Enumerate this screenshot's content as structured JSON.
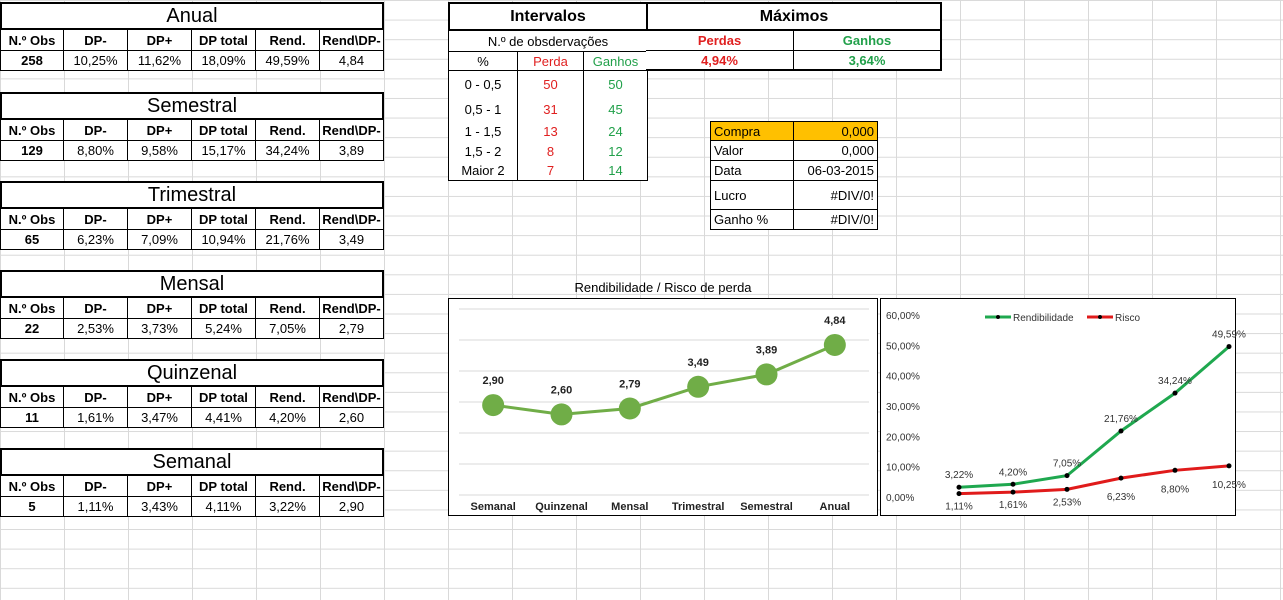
{
  "stats_tables": [
    {
      "title": "Anual",
      "headers": [
        "N.º Obs",
        "DP-",
        "DP+",
        "DP total",
        "Rend.",
        "Rend\\DP-"
      ],
      "values": [
        "258",
        "10,25%",
        "11,62%",
        "18,09%",
        "49,59%",
        "4,84"
      ]
    },
    {
      "title": "Semestral",
      "headers": [
        "N.º Obs",
        "DP-",
        "DP+",
        "DP total",
        "Rend.",
        "Rend\\DP-"
      ],
      "values": [
        "129",
        "8,80%",
        "9,58%",
        "15,17%",
        "34,24%",
        "3,89"
      ]
    },
    {
      "title": "Trimestral",
      "headers": [
        "N.º Obs",
        "DP-",
        "DP+",
        "DP total",
        "Rend.",
        "Rend\\DP-"
      ],
      "values": [
        "65",
        "6,23%",
        "7,09%",
        "10,94%",
        "21,76%",
        "3,49"
      ]
    },
    {
      "title": "Mensal",
      "headers": [
        "N.º Obs",
        "DP-",
        "DP+",
        "DP total",
        "Rend.",
        "Rend\\DP-"
      ],
      "values": [
        "22",
        "2,53%",
        "3,73%",
        "5,24%",
        "7,05%",
        "2,79"
      ]
    },
    {
      "title": "Quinzenal",
      "headers": [
        "N.º Obs",
        "DP-",
        "DP+",
        "DP total",
        "Rend.",
        "Rend\\DP-"
      ],
      "values": [
        "11",
        "1,61%",
        "3,47%",
        "4,41%",
        "4,20%",
        "2,60"
      ]
    },
    {
      "title": "Semanal",
      "headers": [
        "N.º Obs",
        "DP-",
        "DP+",
        "DP total",
        "Rend.",
        "Rend\\DP-"
      ],
      "values": [
        "5",
        "1,11%",
        "3,43%",
        "4,11%",
        "3,22%",
        "2,90"
      ]
    }
  ],
  "intervalos": {
    "title": "Intervalos",
    "subtitle": "N.º de obsdervações",
    "col_headers": [
      "%",
      "Perda",
      "Ganhos"
    ],
    "rows": [
      {
        "label": "0 - 0,5",
        "perda": "50",
        "ganhos": "50"
      },
      {
        "label": "0,5 - 1",
        "perda": "31",
        "ganhos": "45"
      },
      {
        "label": "1 - 1,5",
        "perda": "13",
        "ganhos": "24"
      },
      {
        "label": "1,5 - 2",
        "perda": "8",
        "ganhos": "12"
      },
      {
        "label": "Maior 2",
        "perda": "7",
        "ganhos": "14"
      }
    ]
  },
  "maximos": {
    "title": "Máximos",
    "perdas_label": "Perdas",
    "ganhos_label": "Ganhos",
    "perdas_value": "4,94%",
    "ganhos_value": "3,64%"
  },
  "trade": {
    "rows": [
      {
        "label": "Compra",
        "value": "0,000"
      },
      {
        "label": "Valor",
        "value": "0,000"
      },
      {
        "label": "Data",
        "value": "06-03-2015"
      },
      {
        "label": "Lucro",
        "value": "#DIV/0!"
      },
      {
        "label": "Ganho %",
        "value": "#DIV/0!"
      }
    ],
    "highlight_color": "#ffc000"
  },
  "chart_data": [
    {
      "type": "line",
      "title": "Rendibilidade / Risco de perda",
      "categories": [
        "Semanal",
        "Quinzenal",
        "Mensal",
        "Trimestral",
        "Semestral",
        "Anual"
      ],
      "values": [
        2.9,
        2.6,
        2.79,
        3.49,
        3.89,
        4.84
      ],
      "labels": [
        "2,90",
        "2,60",
        "2,79",
        "3,49",
        "3,89",
        "4,84"
      ],
      "ylim": [
        0,
        6
      ],
      "color": "#70ad47",
      "grid": true
    },
    {
      "type": "line",
      "title": "",
      "x": [
        1,
        2,
        3,
        4,
        5,
        6
      ],
      "ylim": [
        0,
        60
      ],
      "yticks": [
        "0,00%",
        "10,00%",
        "20,00%",
        "30,00%",
        "40,00%",
        "50,00%",
        "60,00%"
      ],
      "legend": "top",
      "series": [
        {
          "name": "Rendibilidade",
          "color": "#1fa84f",
          "values": [
            3.22,
            4.2,
            7.05,
            21.76,
            34.24,
            49.59
          ],
          "labels": [
            "3,22%",
            "4,20%",
            "7,05%",
            "21,76%",
            "34,24%",
            "49,59%"
          ]
        },
        {
          "name": "Risco",
          "color": "#e01b1b",
          "values": [
            1.11,
            1.61,
            2.53,
            6.23,
            8.8,
            10.25
          ],
          "labels": [
            "1,11%",
            "1,61%",
            "2,53%",
            "6,23%",
            "8,80%",
            "10,25%"
          ]
        }
      ]
    }
  ]
}
